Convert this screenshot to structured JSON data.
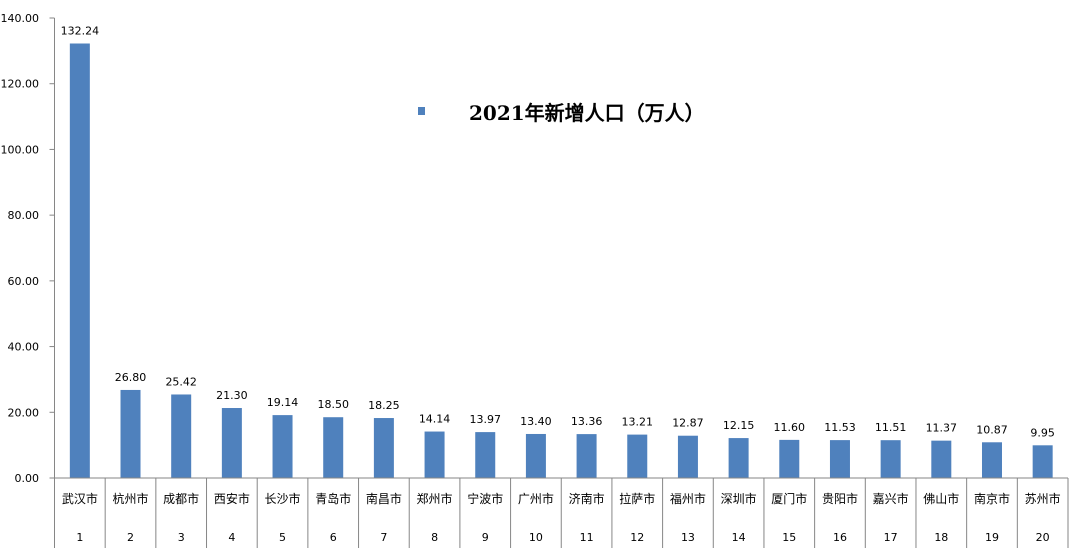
{
  "chart_data": {
    "type": "bar",
    "categories": [
      "武汉市",
      "杭州市",
      "成都市",
      "西安市",
      "长沙市",
      "青岛市",
      "南昌市",
      "郑州市",
      "宁波市",
      "广州市",
      "济南市",
      "拉萨市",
      "福州市",
      "深圳市",
      "厦门市",
      "贵阳市",
      "嘉兴市",
      "佛山市",
      "南京市",
      "苏州市"
    ],
    "ranks": [
      "1",
      "2",
      "3",
      "4",
      "5",
      "6",
      "7",
      "8",
      "9",
      "10",
      "11",
      "12",
      "13",
      "14",
      "15",
      "16",
      "17",
      "18",
      "19",
      "20"
    ],
    "series": [
      {
        "name": "2021年新增人口（万人）",
        "values": [
          132.24,
          26.8,
          25.42,
          21.3,
          19.14,
          18.5,
          18.25,
          14.14,
          13.97,
          13.4,
          13.36,
          13.21,
          12.87,
          12.15,
          11.6,
          11.53,
          11.51,
          11.37,
          10.87,
          9.95
        ],
        "labels": [
          "132.24",
          "26.80",
          "25.42",
          "21.30",
          "19.14",
          "18.50",
          "18.25",
          "14.14",
          "13.97",
          "13.40",
          "13.36",
          "13.21",
          "12.87",
          "12.15",
          "11.60",
          "11.53",
          "11.51",
          "11.37",
          "10.87",
          "9.95"
        ],
        "color": "#4F81BD"
      }
    ],
    "yticks": [
      "0.00",
      "20.00",
      "40.00",
      "60.00",
      "80.00",
      "100.00",
      "120.00",
      "140.00"
    ],
    "ylim": [
      0,
      140
    ],
    "grid": false,
    "legend_position": "top-center"
  },
  "colors": {
    "axis": "#868686",
    "bar": "#4F81BD"
  }
}
